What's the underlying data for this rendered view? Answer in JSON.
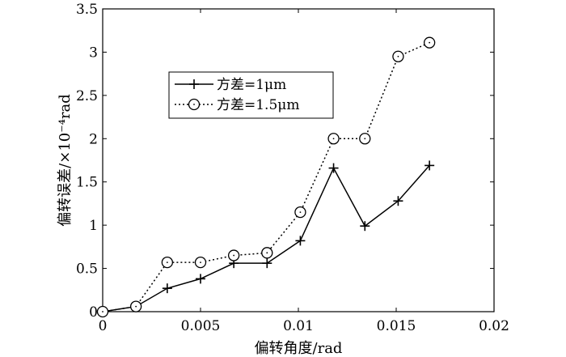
{
  "chart_data": {
    "type": "line",
    "xlabel": "偏转角度/rad",
    "ylabel": "偏转误差/×10⁻⁴rad",
    "xlim": [
      0,
      0.02
    ],
    "ylim": [
      0,
      3.5
    ],
    "xticks": [
      0,
      0.005,
      0.01,
      0.015,
      0.02
    ],
    "xtick_labels": [
      "0",
      "0.005",
      "0.01",
      "0.015",
      "0.02"
    ],
    "yticks": [
      0,
      0.5,
      1,
      1.5,
      2,
      2.5,
      3,
      3.5
    ],
    "ytick_labels": [
      "0",
      "0.5",
      "1",
      "1.5",
      "2",
      "2.5",
      "3",
      "3.5"
    ],
    "grid": false,
    "legend_position": "upper-left",
    "series": [
      {
        "name": "方差=1μm",
        "line_style": "solid",
        "marker": "plus",
        "color": "#000000",
        "x": [
          0,
          0.0017,
          0.0033,
          0.005,
          0.0067,
          0.0084,
          0.0101,
          0.0118,
          0.0134,
          0.0151,
          0.0167
        ],
        "y": [
          0,
          0.06,
          0.27,
          0.38,
          0.56,
          0.56,
          0.82,
          1.66,
          0.99,
          1.28,
          1.69
        ]
      },
      {
        "name": "方差=1.5μm",
        "line_style": "dotted",
        "marker": "circle",
        "color": "#000000",
        "x": [
          0,
          0.0017,
          0.0033,
          0.005,
          0.0067,
          0.0084,
          0.0101,
          0.0118,
          0.0134,
          0.0151,
          0.0167
        ],
        "y": [
          0,
          0.06,
          0.57,
          0.57,
          0.65,
          0.68,
          1.15,
          2.0,
          2.0,
          2.95,
          3.11
        ]
      }
    ]
  }
}
